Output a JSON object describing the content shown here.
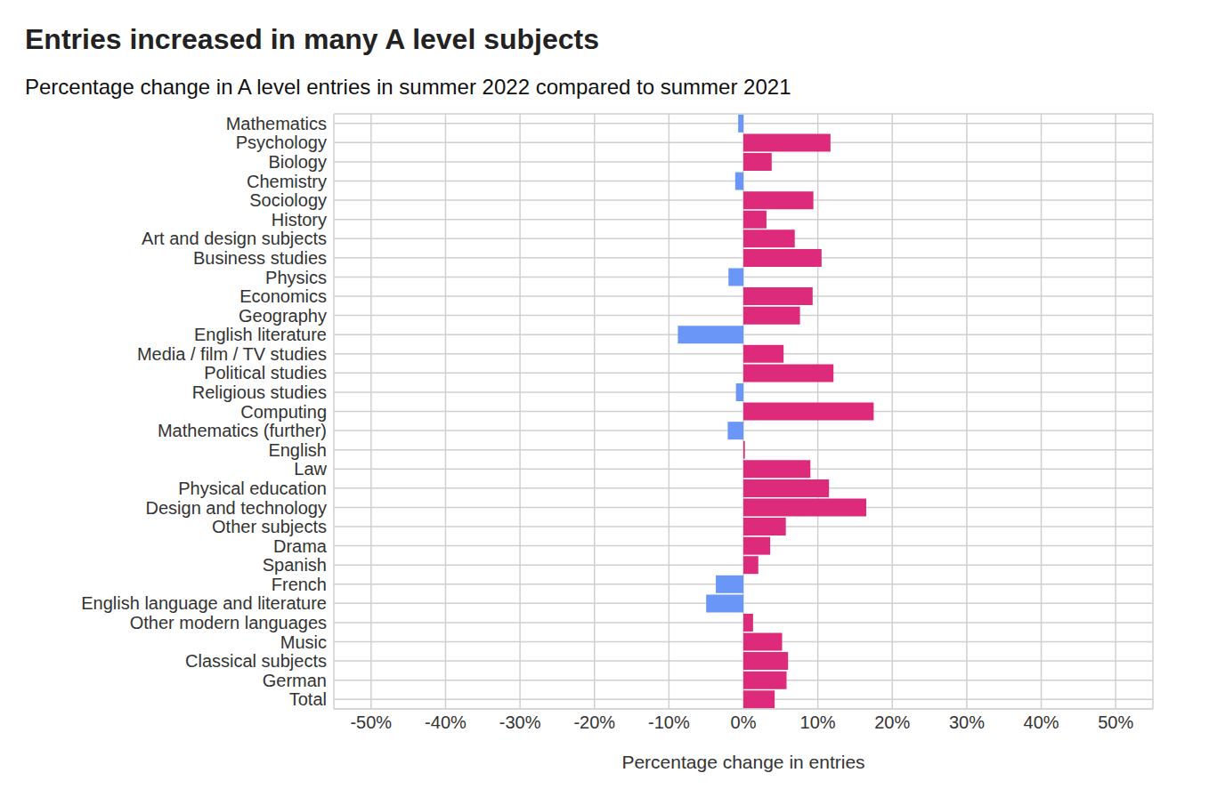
{
  "chart_data": {
    "type": "bar",
    "orientation": "horizontal",
    "title": "Entries increased in many A level subjects",
    "subtitle": "Percentage change in A level entries in summer 2022 compared to summer 2021",
    "x_label": "Percentage change in entries",
    "categories": [
      "Mathematics",
      "Psychology",
      "Biology",
      "Chemistry",
      "Sociology",
      "History",
      "Art and design subjects",
      "Business studies",
      "Physics",
      "Economics",
      "Geography",
      "English literature",
      "Media / film / TV studies",
      "Political studies",
      "Religious studies",
      "Computing",
      "Mathematics (further)",
      "English",
      "Law",
      "Physical education",
      "Design and technology",
      "Other subjects",
      "Drama",
      "Spanish",
      "French",
      "English language and literature",
      "Other modern languages",
      "Music",
      "Classical subjects",
      "German",
      "Total"
    ],
    "values": [
      -0.7,
      11.7,
      3.8,
      -1.1,
      9.4,
      3.1,
      6.9,
      10.5,
      -2.0,
      9.3,
      7.6,
      -8.8,
      5.4,
      12.1,
      -1.0,
      17.5,
      -2.1,
      0.2,
      9.0,
      11.5,
      16.5,
      5.7,
      3.6,
      2.0,
      -3.7,
      -5.0,
      1.3,
      5.2,
      6.0,
      5.8,
      4.2
    ],
    "colors": [
      "#6a96f8",
      "#dd2a7b",
      "#dd2a7b",
      "#6a96f8",
      "#dd2a7b",
      "#dd2a7b",
      "#dd2a7b",
      "#dd2a7b",
      "#6a96f8",
      "#dd2a7b",
      "#dd2a7b",
      "#6a96f8",
      "#dd2a7b",
      "#dd2a7b",
      "#6a96f8",
      "#dd2a7b",
      "#6a96f8",
      "#dd2a7b",
      "#dd2a7b",
      "#dd2a7b",
      "#dd2a7b",
      "#dd2a7b",
      "#dd2a7b",
      "#dd2a7b",
      "#6a96f8",
      "#6a96f8",
      "#dd2a7b",
      "#dd2a7b",
      "#dd2a7b",
      "#dd2a7b",
      "#dd2a7b"
    ],
    "xlim": [
      -55,
      55
    ],
    "xticks": [
      {
        "value": -50,
        "label": "-50%"
      },
      {
        "value": -40,
        "label": "-40%"
      },
      {
        "value": -30,
        "label": "-30%"
      },
      {
        "value": -20,
        "label": "-20%"
      },
      {
        "value": -10,
        "label": "-10%"
      },
      {
        "value": 0,
        "label": "0%"
      },
      {
        "value": 10,
        "label": "10%"
      },
      {
        "value": 20,
        "label": "20%"
      },
      {
        "value": 30,
        "label": "30%"
      },
      {
        "value": 40,
        "label": "40%"
      },
      {
        "value": 50,
        "label": "50%"
      }
    ],
    "grid": true
  }
}
